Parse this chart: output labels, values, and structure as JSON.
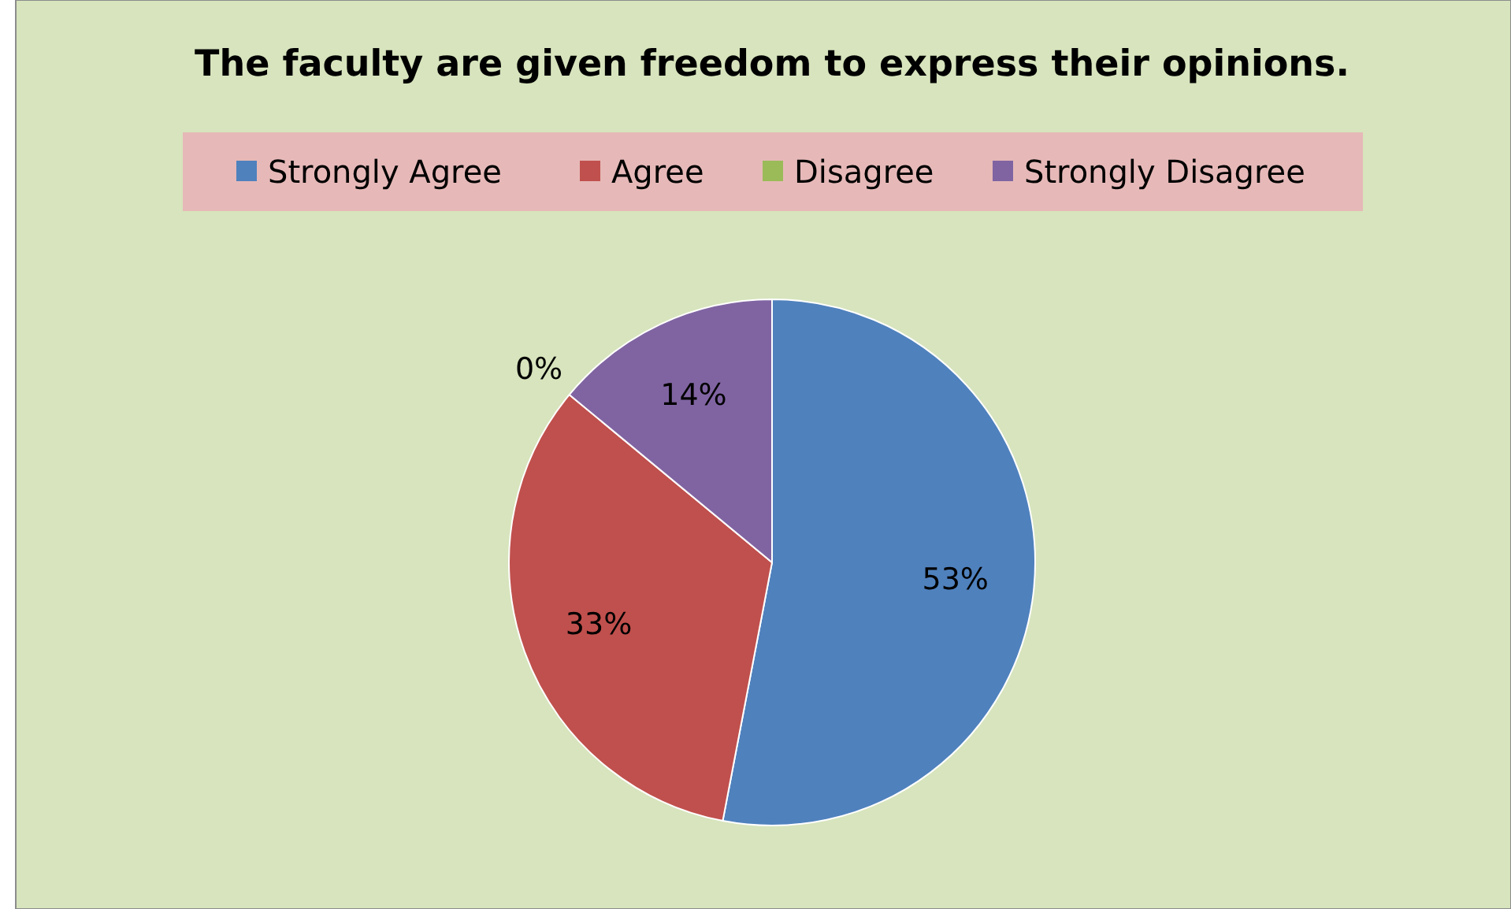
{
  "chart_data": {
    "type": "pie",
    "title": "The faculty are given freedom to express their opinions.",
    "categories": [
      "Strongly Agree",
      "Agree",
      "Disagree",
      "Strongly Disagree"
    ],
    "values": [
      53,
      33,
      0,
      14
    ],
    "colors": [
      "#4f81bd",
      "#c0504d",
      "#9bbb59",
      "#8064a2"
    ],
    "value_labels": [
      "53%",
      "33%",
      "0%",
      "14%"
    ],
    "legend": "top"
  }
}
